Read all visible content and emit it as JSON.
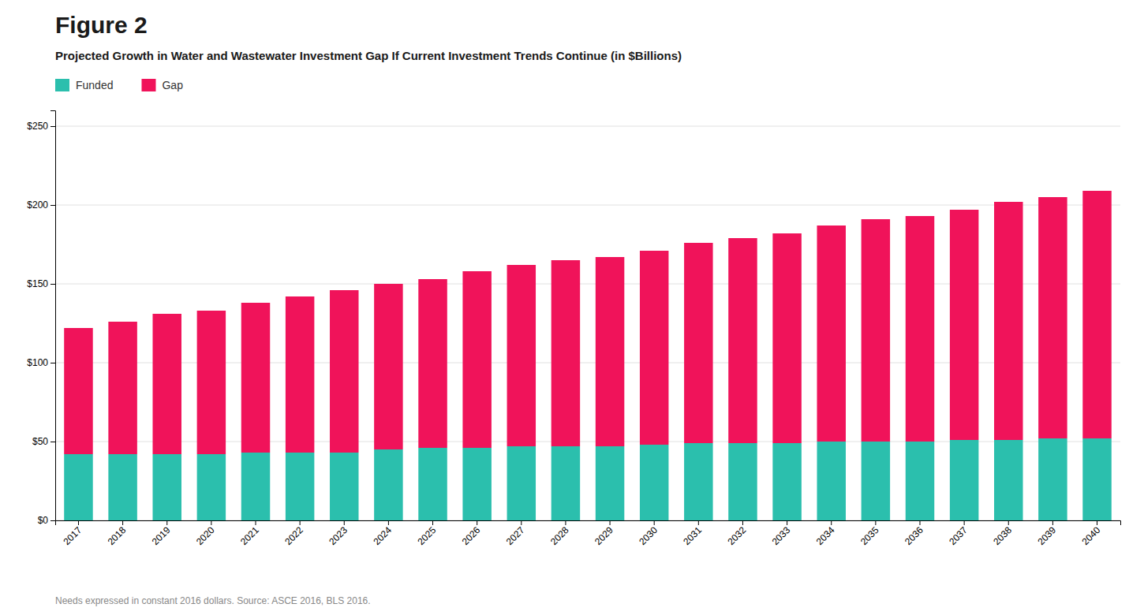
{
  "chart_data": {
    "type": "bar",
    "title": "Figure 2",
    "subtitle": "Projected Growth in Water and Wastewater Investment Gap If Current Investment Trends Continue (in $Billions)",
    "footnote": "Needs expressed in constant 2016 dollars. Source: ASCE 2016, BLS 2016.",
    "categories": [
      "2017",
      "2018",
      "2019",
      "2020",
      "2021",
      "2022",
      "2023",
      "2024",
      "2025",
      "2026",
      "2027",
      "2028",
      "2029",
      "2030",
      "2031",
      "2032",
      "2033",
      "2034",
      "2035",
      "2036",
      "2037",
      "2038",
      "2039",
      "2040"
    ],
    "series": [
      {
        "name": "Funded",
        "color": "#2bbfad",
        "values": [
          42,
          42,
          42,
          42,
          43,
          43,
          43,
          45,
          46,
          46,
          47,
          47,
          47,
          48,
          49,
          49,
          49,
          50,
          50,
          50,
          51,
          51,
          52,
          52
        ]
      },
      {
        "name": "Gap",
        "color": "#f0135a",
        "values": [
          80,
          84,
          89,
          91,
          95,
          99,
          103,
          105,
          107,
          112,
          115,
          118,
          120,
          123,
          127,
          130,
          133,
          137,
          141,
          143,
          146,
          151,
          153,
          157
        ]
      }
    ],
    "stacked": true,
    "ylim": [
      0,
      260
    ],
    "yticks": [
      {
        "value": 0,
        "label": "$0"
      },
      {
        "value": 50,
        "label": "$50"
      },
      {
        "value": 100,
        "label": "$100"
      },
      {
        "value": 150,
        "label": "$150"
      },
      {
        "value": 200,
        "label": "$200"
      },
      {
        "value": 250,
        "label": "$250"
      }
    ],
    "grid": true,
    "legend": "top-left"
  }
}
